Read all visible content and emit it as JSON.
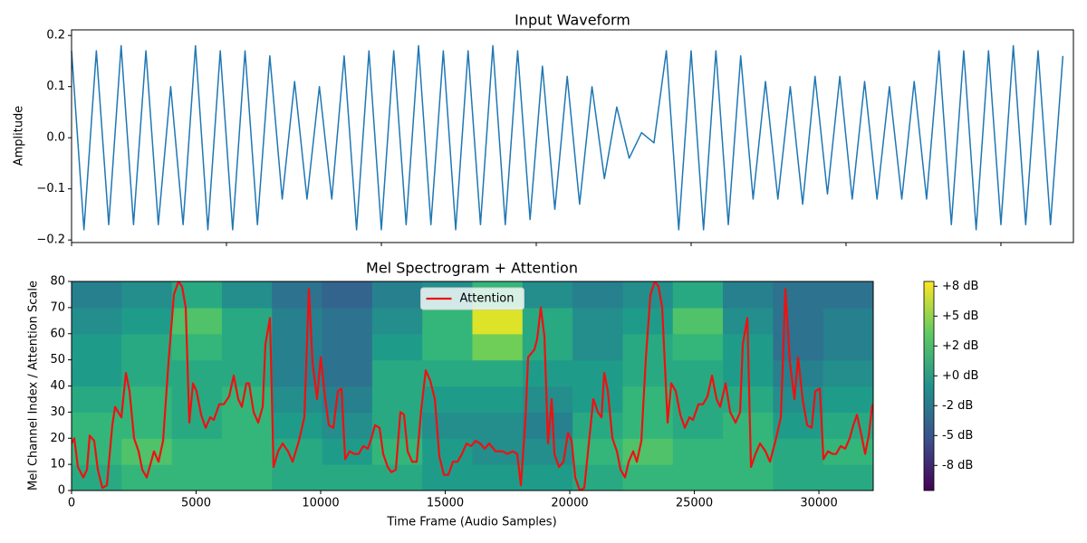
{
  "chart_data": [
    {
      "type": "line",
      "title": "Input Waveform",
      "y_label": "Amplitude",
      "xlim": [
        0,
        32340
      ],
      "xticks": [
        0,
        5000,
        10000,
        15000,
        20000,
        25000,
        30000
      ],
      "ylim": [
        -0.205,
        0.211
      ],
      "yticks": [
        {
          "value": -0.2,
          "label": "−0.2"
        },
        {
          "value": -0.1,
          "label": "−0.1"
        },
        {
          "value": 0,
          "label": "0.0"
        },
        0.1,
        0.2
      ],
      "x": [
        0,
        400,
        800,
        1200,
        1600,
        2000,
        2400,
        2800,
        3200,
        3600,
        4000,
        4400,
        4800,
        5200,
        5600,
        6000,
        6400,
        6800,
        7200,
        7600,
        8000,
        8400,
        8800,
        9200,
        9600,
        10000,
        10400,
        10800,
        11200,
        11600,
        12000,
        12400,
        12800,
        13200,
        13600,
        14000,
        14400,
        14800,
        15200,
        15600,
        16000,
        16400,
        16800,
        17200,
        17600,
        18000,
        18400,
        18800,
        19200,
        19600,
        20000,
        20400,
        20800,
        21200,
        21600,
        22000,
        22400,
        22800,
        23200,
        23600,
        24000,
        24400,
        24800,
        25200,
        25600,
        26000,
        26400,
        26800,
        27200,
        27600,
        28000,
        28400,
        28800,
        29200,
        29600,
        30000,
        30400,
        30800,
        31200,
        31600,
        32000
      ],
      "series": [
        {
          "color": "#1f77b4",
          "values": [
            0.17,
            -0.18,
            0.17,
            -0.17,
            0.18,
            -0.17,
            0.17,
            -0.17,
            0.1,
            -0.17,
            0.18,
            -0.18,
            0.17,
            -0.18,
            0.17,
            -0.17,
            0.16,
            -0.12,
            0.11,
            -0.12,
            0.1,
            -0.12,
            0.16,
            -0.18,
            0.17,
            -0.18,
            0.17,
            -0.17,
            0.18,
            -0.17,
            0.17,
            -0.18,
            0.17,
            -0.17,
            0.18,
            -0.17,
            0.17,
            -0.16,
            0.14,
            -0.14,
            0.12,
            -0.13,
            0.1,
            -0.08,
            0.06,
            -0.04,
            0.01,
            -0.01,
            0.17,
            -0.18,
            0.17,
            -0.18,
            0.17,
            -0.17,
            0.16,
            -0.12,
            0.11,
            -0.12,
            0.1,
            -0.13,
            0.12,
            -0.11,
            0.12,
            -0.12,
            0.11,
            -0.12,
            0.1,
            -0.12,
            0.11,
            -0.12,
            0.17,
            -0.17,
            0.17,
            -0.18,
            0.17,
            -0.17,
            0.18,
            -0.17,
            0.17,
            -0.17,
            0.16
          ]
        }
      ]
    },
    {
      "type": "heatmap_line",
      "title": "Mel Spectrogram + Attention",
      "x_label": "Time Frame (Audio Samples)",
      "y_label": "Mel Channel Index / Attention Scale",
      "xlim": [
        0,
        32180
      ],
      "xticks": [
        0,
        5000,
        10000,
        15000,
        20000,
        25000,
        30000
      ],
      "ylim": [
        0,
        80
      ],
      "yticks": [
        0,
        10,
        20,
        30,
        40,
        50,
        60,
        70,
        80
      ],
      "heatmap": {
        "clim": [
          -9.6,
          7.9
        ],
        "cticks": [
          {
            "value": 7.5,
            "label": "+8 dB"
          },
          {
            "value": 5,
            "label": "+5 dB"
          },
          {
            "value": 2.5,
            "label": "+2 dB"
          },
          {
            "value": 0,
            "label": "+0 dB"
          },
          {
            "value": -2.5,
            "label": "-2 dB"
          },
          {
            "value": -5,
            "label": "-5 dB"
          },
          {
            "value": -7.5,
            "label": "-8 dB"
          }
        ],
        "values": [
          [
            1,
            2,
            2,
            2,
            1,
            1,
            1,
            0,
            0,
            0,
            1,
            2,
            2,
            2,
            1,
            1
          ],
          [
            2,
            3,
            2,
            2,
            1,
            0,
            2,
            0,
            -1,
            -1,
            2,
            3,
            2,
            2,
            1,
            2
          ],
          [
            2,
            2,
            1,
            2,
            0,
            -1,
            1,
            -1,
            -1,
            -2,
            1,
            2,
            1,
            2,
            0,
            1
          ],
          [
            1,
            2,
            1,
            2,
            -1,
            -2,
            1,
            0,
            0,
            -1,
            0,
            2,
            1,
            1,
            -1,
            0
          ],
          [
            0,
            1,
            1,
            1,
            -2,
            -3,
            1,
            1,
            1,
            0,
            0,
            1,
            1,
            0,
            -2,
            -1
          ],
          [
            0,
            1,
            2,
            1,
            -2,
            -3,
            0,
            2,
            4,
            1,
            -1,
            1,
            2,
            0,
            -3,
            -2
          ],
          [
            -1,
            0,
            3,
            1,
            -2,
            -3,
            -1,
            2,
            7,
            1,
            -1,
            0,
            3,
            -1,
            -3,
            -2
          ],
          [
            -2,
            -1,
            1,
            -1,
            -3,
            -4,
            -2,
            -1,
            2,
            -1,
            -2,
            -1,
            1,
            -2,
            -3,
            -3
          ]
        ]
      },
      "legend": "upper center",
      "x": [
        0,
        109,
        255,
        473,
        618,
        727,
        909,
        1054,
        1236,
        1418,
        1636,
        1745,
        2000,
        2182,
        2327,
        2509,
        2691,
        2836,
        3018,
        3309,
        3491,
        3673,
        3891,
        4109,
        4291,
        4436,
        4582,
        4727,
        4873,
        5018,
        5200,
        5382,
        5564,
        5709,
        5927,
        6109,
        6327,
        6509,
        6691,
        6836,
        7018,
        7127,
        7309,
        7491,
        7673,
        7782,
        7964,
        8109,
        8291,
        8473,
        8691,
        8873,
        9127,
        9345,
        9527,
        9673,
        9855,
        10000,
        10182,
        10327,
        10509,
        10691,
        10836,
        10982,
        11164,
        11345,
        11527,
        11709,
        11891,
        12036,
        12182,
        12364,
        12509,
        12691,
        12836,
        13018,
        13200,
        13345,
        13491,
        13673,
        13855,
        14036,
        14218,
        14400,
        14582,
        14764,
        14945,
        15127,
        15309,
        15491,
        15673,
        15855,
        16036,
        16218,
        16400,
        16582,
        16764,
        17018,
        17309,
        17491,
        17709,
        17891,
        18036,
        18218,
        18327,
        18582,
        18691,
        18836,
        18982,
        19127,
        19273,
        19382,
        19564,
        19745,
        19927,
        20073,
        20218,
        20400,
        20582,
        20764,
        20945,
        21127,
        21273,
        21382,
        21527,
        21709,
        21891,
        22036,
        22218,
        22364,
        22545,
        22691,
        22873,
        23055,
        23236,
        23418,
        23564,
        23709,
        23927,
        24073,
        24255,
        24436,
        24618,
        24800,
        24945,
        25164,
        25345,
        25527,
        25709,
        25891,
        26036,
        26255,
        26436,
        26655,
        26836,
        26945,
        27127,
        27273,
        27455,
        27636,
        27855,
        28036,
        28255,
        28473,
        28655,
        28836,
        29018,
        29164,
        29345,
        29527,
        29709,
        29855,
        30036,
        30182,
        30364,
        30545,
        30691,
        30873,
        31055,
        31236,
        31382,
        31527,
        31709,
        31855,
        32000,
        32145
      ],
      "series": [
        {
          "name": "Attention",
          "color": "#ee1111",
          "values": [
            18,
            20,
            9,
            5,
            8,
            21,
            19,
            8,
            1,
            2,
            25,
            32,
            28,
            45,
            38,
            20,
            15,
            8,
            5,
            15,
            11,
            19,
            49,
            75,
            80,
            78,
            70,
            26,
            41,
            38,
            29,
            24,
            28,
            27,
            33,
            33,
            36,
            44,
            35,
            32,
            41,
            41,
            30,
            26,
            32,
            56,
            66,
            9,
            15,
            18,
            15,
            11,
            19,
            28,
            77,
            49,
            35,
            51,
            35,
            25,
            24,
            38,
            39,
            12,
            15,
            14,
            14,
            17,
            16,
            20,
            25,
            24,
            14,
            9,
            7,
            8,
            30,
            29,
            15,
            11,
            11,
            31,
            46,
            42,
            35,
            13,
            6,
            6,
            11,
            11,
            14,
            18,
            17,
            19,
            18,
            16,
            18,
            15,
            15,
            14,
            15,
            14,
            2,
            27,
            51,
            54,
            58,
            70,
            59,
            18,
            35,
            14,
            9,
            11,
            22,
            19,
            5,
            0,
            1,
            18,
            35,
            30,
            28,
            45,
            38,
            20,
            15,
            8,
            5,
            11,
            15,
            11,
            19,
            51,
            75,
            80,
            78,
            70,
            26,
            41,
            38,
            29,
            24,
            28,
            27,
            33,
            33,
            36,
            44,
            35,
            32,
            41,
            30,
            26,
            30,
            56,
            66,
            9,
            14,
            18,
            15,
            11,
            19,
            28,
            77,
            49,
            35,
            51,
            35,
            25,
            24,
            38,
            39,
            12,
            15,
            14,
            14,
            17,
            16,
            20,
            25,
            29,
            21,
            14,
            21,
            33
          ]
        }
      ]
    }
  ]
}
